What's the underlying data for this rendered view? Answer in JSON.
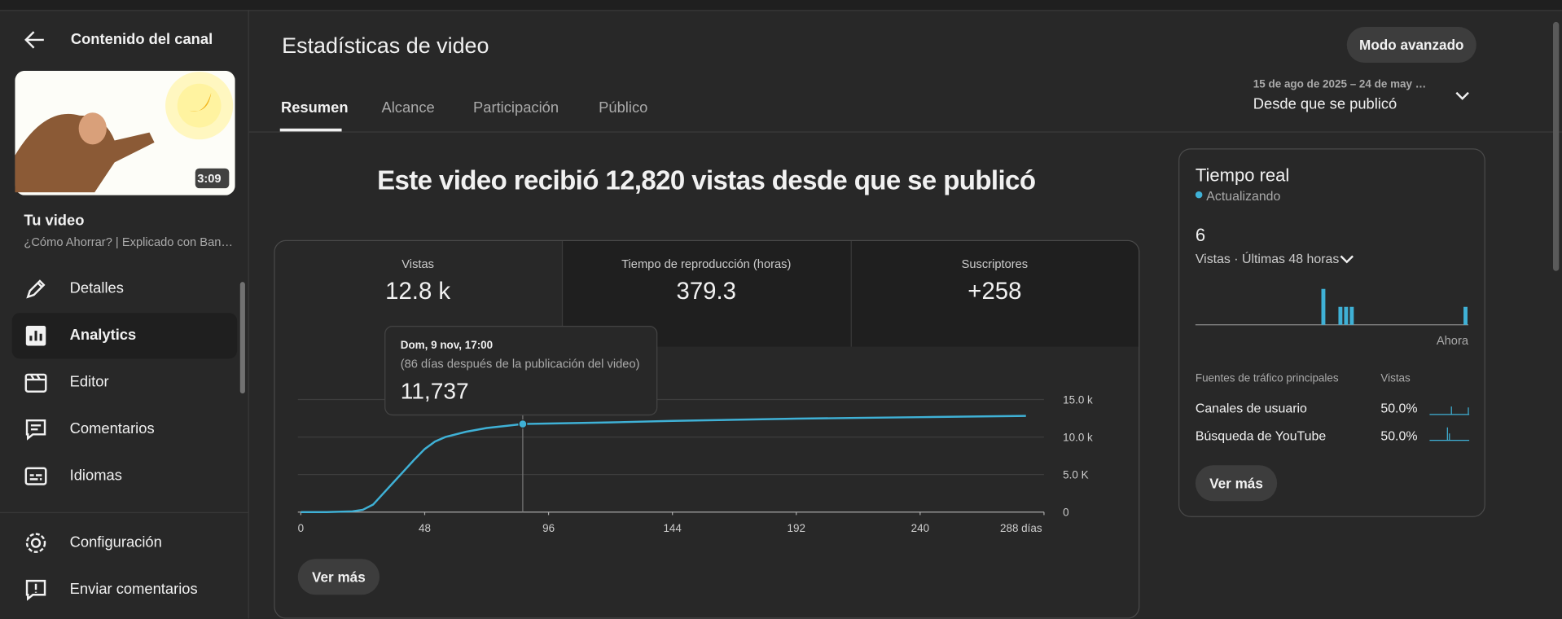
{
  "sidebar": {
    "back_title": "Contenido del canal",
    "duration": "3:09",
    "video_label": "Tu video",
    "video_title": "¿Cómo Ahorrar? | Explicado con Ban…",
    "menu": [
      "Detalles",
      "Analytics",
      "Editor",
      "Comentarios",
      "Idiomas"
    ],
    "footer": [
      "Configuración",
      "Enviar comentarios"
    ]
  },
  "header": {
    "title": "Estadísticas de video",
    "advanced_button": "Modo avanzado",
    "date_range": "15 de ago de 2025 – 24 de may …",
    "period": "Desde que se publicó",
    "tabs": [
      "Resumen",
      "Alcance",
      "Participación",
      "Público"
    ]
  },
  "headline": "Este video recibió 12,820 vistas desde que se publicó",
  "metrics": [
    {
      "label": "Vistas",
      "value": "12.8 k"
    },
    {
      "label": "Tiempo de reproducción (horas)",
      "value": "379.3"
    },
    {
      "label": "Suscriptores",
      "value": "+258"
    }
  ],
  "tooltip": {
    "date": "Dom, 9 nov, 17:00",
    "note": "(86 días después de la publicación del video)",
    "value": "11,737"
  },
  "chart_button": "Ver más",
  "realtime": {
    "title": "Tiempo real",
    "status": "Actualizando",
    "count": "6",
    "metric": "Vistas · Últimas 48 horas",
    "traffic_header": "Fuentes de tráfico principales",
    "traffic_col": "Vistas",
    "sources": [
      {
        "name": "Canales de usuario",
        "share": "50.0%"
      },
      {
        "name": "Búsqueda de YouTube",
        "share": "50.0%"
      }
    ],
    "button": "Ver más"
  },
  "chart_data": [
    {
      "type": "line",
      "color": "#3fb1d6",
      "grid": true,
      "x": [
        0,
        10,
        20,
        24,
        28,
        32,
        36,
        40,
        44,
        48,
        52,
        56,
        64,
        72,
        80,
        86,
        96,
        120,
        144,
        168,
        192,
        216,
        240,
        264,
        281
      ],
      "series": [
        {
          "name": "Vistas",
          "color": "#3fb1d6",
          "values": [
            0,
            0,
            100,
            300,
            1000,
            2500,
            4000,
            5500,
            7000,
            8400,
            9400,
            10000,
            10700,
            11200,
            11500,
            11737,
            11800,
            11950,
            12150,
            12300,
            12450,
            12550,
            12650,
            12750,
            12820
          ]
        }
      ],
      "highlight_x": 86,
      "xlim": [
        0,
        288
      ],
      "xticks": [
        0,
        48,
        96,
        144,
        192,
        240,
        {
          "value": 288,
          "label": "288 días"
        }
      ],
      "ylim": [
        0,
        15000
      ],
      "yticks": [
        0,
        {
          "value": 5000,
          "label": "5.0 K"
        },
        {
          "value": 10000,
          "label": "10.0 k"
        },
        {
          "value": 15000,
          "label": "15.0 k"
        }
      ]
    },
    {
      "type": "bar",
      "color": "#3fb1d6",
      "categories": [
        null,
        null,
        null,
        null,
        null,
        null,
        null,
        null,
        null,
        null,
        null,
        null,
        null,
        null,
        null,
        null,
        null,
        null,
        null,
        null,
        null,
        null,
        null,
        null,
        null,
        null,
        null,
        null,
        null,
        null,
        null,
        null,
        null,
        null,
        null,
        null,
        null,
        null,
        null,
        null,
        null,
        null,
        null,
        null,
        null,
        null,
        null,
        "Ahora"
      ],
      "values": [
        0,
        0,
        0,
        0,
        0,
        0,
        0,
        0,
        0,
        0,
        0,
        0,
        0,
        0,
        0,
        0,
        0,
        0,
        0,
        0,
        0,
        0,
        2,
        0,
        0,
        1,
        1,
        1,
        0,
        0,
        0,
        0,
        0,
        0,
        0,
        0,
        0,
        0,
        0,
        0,
        0,
        0,
        0,
        0,
        0,
        0,
        0,
        1
      ],
      "ylim": [
        0,
        2
      ]
    }
  ]
}
